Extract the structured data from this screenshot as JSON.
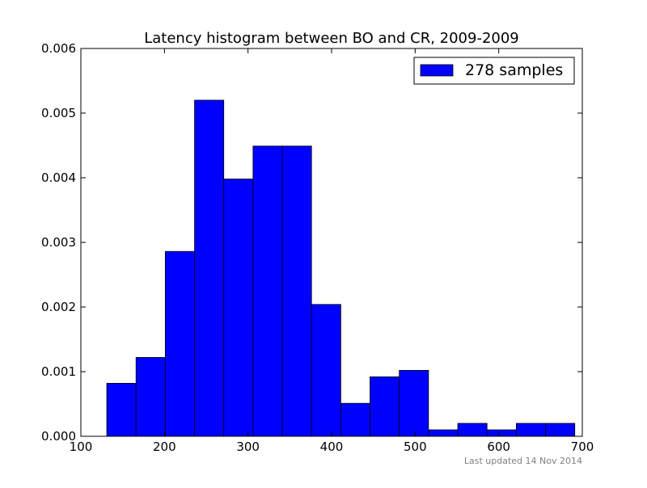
{
  "footer": {
    "updated": "Last updated 14 Nov 2014"
  },
  "chart_data": {
    "type": "bar",
    "title": "Latency histogram between BO and CR, 2009-2009",
    "xlabel": "",
    "ylabel": "",
    "xlim": [
      100,
      700
    ],
    "ylim": [
      0,
      0.006
    ],
    "x_ticks": [
      "100",
      "200",
      "300",
      "400",
      "500",
      "600",
      "700"
    ],
    "y_ticks": [
      "0.000",
      "0.001",
      "0.002",
      "0.003",
      "0.004",
      "0.005",
      "0.006"
    ],
    "grid": false,
    "legend_position": "top-right",
    "bar_color": "#0000ff",
    "series": [
      {
        "name": "278 samples",
        "bins": [
          {
            "x0": 131,
            "x1": 166,
            "value": 0.00082
          },
          {
            "x0": 166,
            "x1": 201,
            "value": 0.00122
          },
          {
            "x0": 201,
            "x1": 236,
            "value": 0.00286
          },
          {
            "x0": 236,
            "x1": 271,
            "value": 0.0052
          },
          {
            "x0": 271,
            "x1": 306,
            "value": 0.00398
          },
          {
            "x0": 306,
            "x1": 341,
            "value": 0.00449
          },
          {
            "x0": 341,
            "x1": 376,
            "value": 0.00449
          },
          {
            "x0": 376,
            "x1": 411,
            "value": 0.00204
          },
          {
            "x0": 411,
            "x1": 446,
            "value": 0.00051
          },
          {
            "x0": 446,
            "x1": 481,
            "value": 0.00092
          },
          {
            "x0": 481,
            "x1": 516,
            "value": 0.00102
          },
          {
            "x0": 516,
            "x1": 551,
            "value": 0.0001
          },
          {
            "x0": 551,
            "x1": 586,
            "value": 0.0002
          },
          {
            "x0": 586,
            "x1": 621,
            "value": 0.0001
          },
          {
            "x0": 621,
            "x1": 656,
            "value": 0.0002
          },
          {
            "x0": 656,
            "x1": 691,
            "value": 0.0002
          }
        ]
      }
    ]
  }
}
